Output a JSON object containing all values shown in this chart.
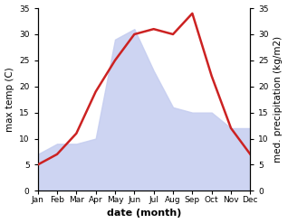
{
  "months": [
    "Jan",
    "Feb",
    "Mar",
    "Apr",
    "May",
    "Jun",
    "Jul",
    "Aug",
    "Sep",
    "Oct",
    "Nov",
    "Dec"
  ],
  "temp_max": [
    5,
    7,
    11,
    19,
    25,
    30,
    31,
    30,
    34,
    22,
    12,
    7
  ],
  "precipitation": [
    7,
    9,
    9,
    10,
    29,
    31,
    23,
    16,
    15,
    15,
    12,
    12
  ],
  "temp_color": "#cc2222",
  "precip_fill_color": "#c5cdf0",
  "precip_alpha": 0.85,
  "ylim_left": [
    0,
    35
  ],
  "ylim_right": [
    0,
    35
  ],
  "yticks": [
    0,
    5,
    10,
    15,
    20,
    25,
    30,
    35
  ],
  "xlabel": "date (month)",
  "ylabel_left": "max temp (C)",
  "ylabel_right": "med. precipitation (kg/m2)",
  "bg_color": "#ffffff",
  "line_width": 1.8,
  "tick_fontsize": 6.5,
  "label_fontsize": 7.5,
  "xlabel_fontsize": 8
}
